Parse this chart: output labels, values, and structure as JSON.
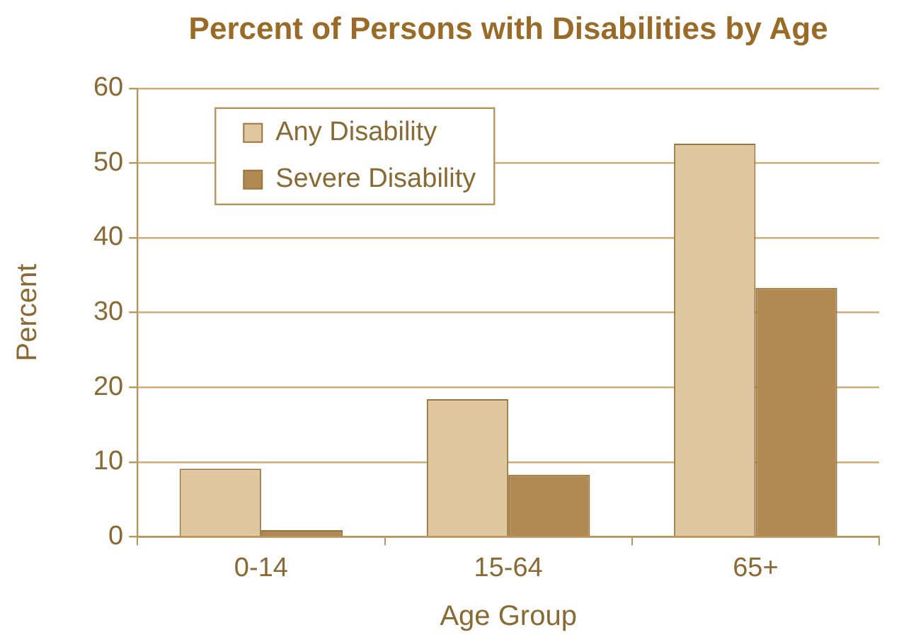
{
  "chart_data": {
    "type": "bar",
    "title": "Percent of Persons with Disabilities by Age",
    "xlabel": "Age Group",
    "ylabel": "Percent",
    "categories": [
      "0-14",
      "15-64",
      "65+"
    ],
    "series": [
      {
        "name": "Any Disability",
        "color": "#dfc8a0",
        "values": [
          9.1,
          18.4,
          52.6
        ]
      },
      {
        "name": "Severe Disability",
        "color": "#b08a52",
        "values": [
          0.9,
          8.3,
          33.3
        ]
      }
    ],
    "ylim": [
      0,
      60
    ],
    "yticks": [
      0,
      10,
      20,
      30,
      40,
      50,
      60
    ],
    "grid": "y",
    "legend": "top left"
  }
}
